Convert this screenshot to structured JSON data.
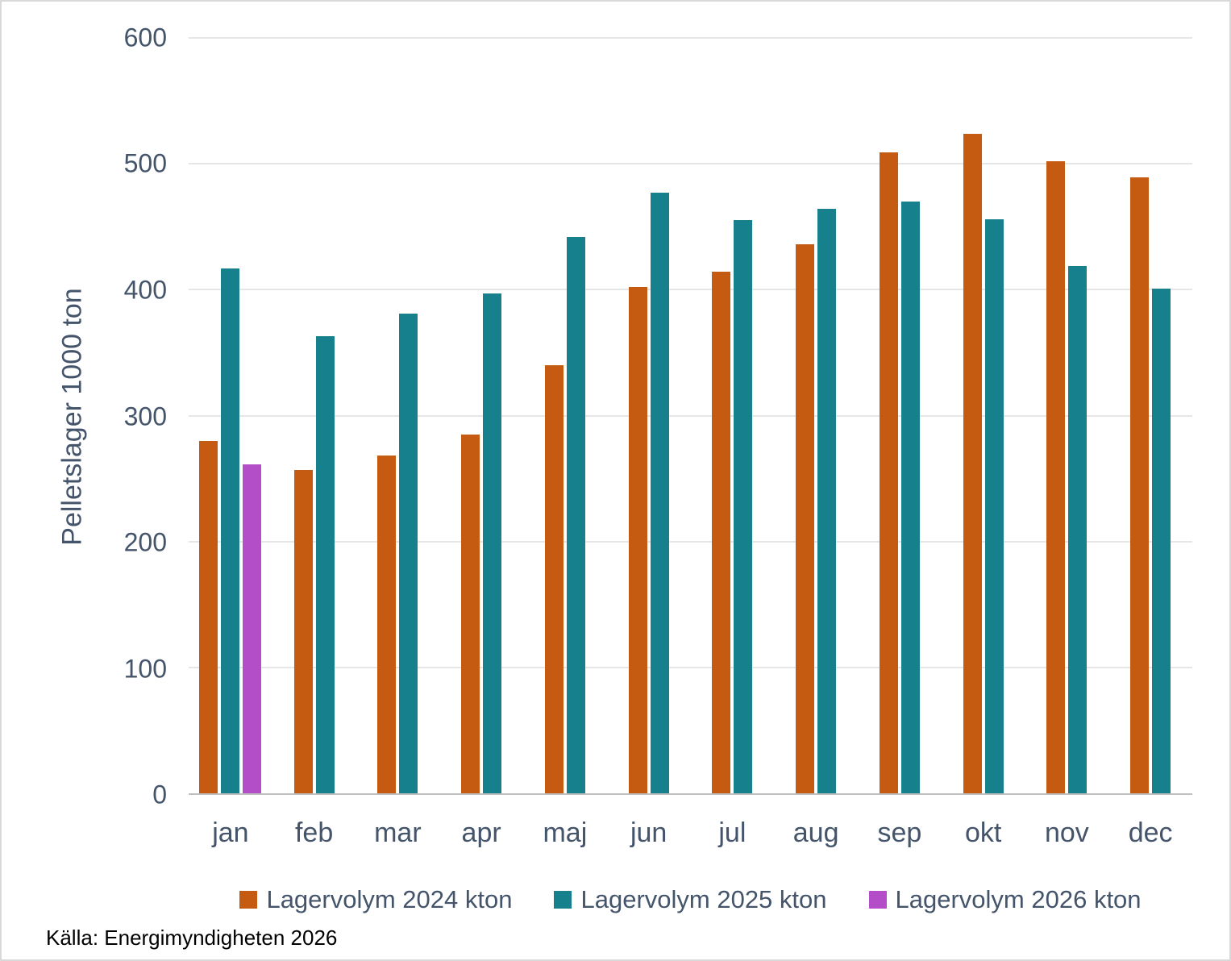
{
  "chart_data": {
    "type": "bar",
    "title": "",
    "categories": [
      "jan",
      "feb",
      "mar",
      "apr",
      "maj",
      "jun",
      "jul",
      "aug",
      "sep",
      "okt",
      "nov",
      "dec"
    ],
    "series": [
      {
        "name": "Lagervolym 2024 kton",
        "color": "#C55A11",
        "values": [
          280,
          257,
          268,
          285,
          340,
          402,
          414,
          436,
          509,
          524,
          502,
          489
        ]
      },
      {
        "name": "Lagervolym 2025 kton",
        "color": "#16808C",
        "values": [
          417,
          363,
          381,
          397,
          442,
          477,
          455,
          464,
          470,
          456,
          419,
          401
        ]
      },
      {
        "name": "Lagervolym 2026 kton",
        "color": "#B44EC8",
        "values": [
          261,
          null,
          null,
          null,
          null,
          null,
          null,
          null,
          null,
          null,
          null,
          null
        ]
      }
    ],
    "xlabel": "",
    "ylabel": "Pelletslager 1000 ton",
    "ylim": [
      0,
      600
    ],
    "ytick_interval": 100,
    "yticks": [
      0,
      100,
      200,
      300,
      400,
      500,
      600
    ],
    "grid": true,
    "legend_position": "bottom",
    "axis_text_color": "#44546A",
    "gridline_color": "#E6E6E6"
  },
  "source": "Källa: Energimyndigheten 2026"
}
